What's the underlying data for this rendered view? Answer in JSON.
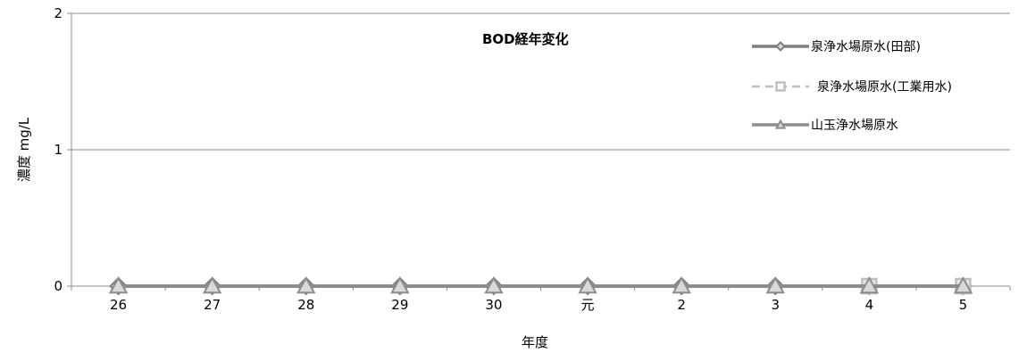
{
  "chart_data": {
    "type": "line",
    "title": "BOD経年変化",
    "xlabel": "年度",
    "ylabel": "濃度 mg/L",
    "categories": [
      "26",
      "27",
      "28",
      "29",
      "30",
      "元",
      "2",
      "3",
      "4",
      "5"
    ],
    "yticks": [
      "0",
      "1",
      "2"
    ],
    "ylim": [
      0,
      2
    ],
    "grid": true,
    "legend_position": "top-right",
    "series": [
      {
        "name": "泉浄水場原水(田部)",
        "values": [
          0,
          0,
          0,
          0,
          0,
          0,
          0,
          0,
          0,
          0
        ],
        "color": "#7f7f7f",
        "marker": "diamond",
        "dash": "solid"
      },
      {
        "name": "泉浄水場原水(工業用水)",
        "values": [
          null,
          null,
          null,
          null,
          null,
          null,
          null,
          null,
          0,
          0
        ],
        "color": "#bfbfbf",
        "marker": "square",
        "dash": "dashed"
      },
      {
        "name": "山玉浄水場原水",
        "values": [
          0,
          0,
          0,
          0,
          0,
          0,
          0,
          0,
          0,
          0
        ],
        "color": "#8c8c8c",
        "marker": "triangle",
        "dash": "solid"
      }
    ]
  }
}
